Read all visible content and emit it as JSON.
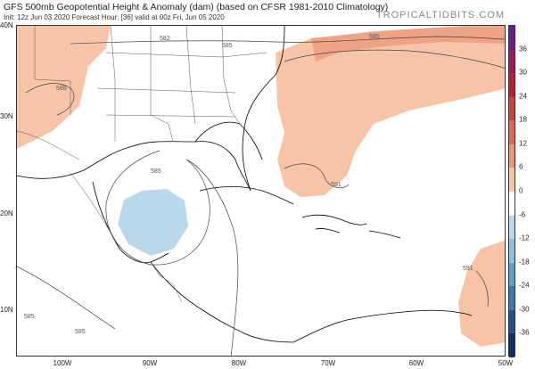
{
  "header": {
    "title": "GFS 500mb Geopotential Height & Anomaly (dam) (based on CFSR 1981-2010 Climatology)",
    "subtitle": "Init: 12z Jun 03 2020   Forecast Hour: [36]   valid at 00z Fri, Jun 05 2020",
    "brand": "TROPICALTIDBITS.COM"
  },
  "map": {
    "latitude_labels": [
      "40N",
      "30N",
      "20N",
      "10N"
    ],
    "longitude_labels": [
      "100W",
      "90W",
      "80W",
      "70W",
      "60W",
      "50W"
    ],
    "contour_labels": [
      "582",
      "585",
      "585",
      "588",
      "585",
      "591",
      "591",
      "585",
      "585"
    ]
  },
  "colorbar": {
    "labels": [
      "36",
      "30",
      "24",
      "18",
      "12",
      "6",
      "0",
      "-6",
      "-12",
      "-18",
      "-24",
      "-30",
      "-36"
    ],
    "colors": [
      "#6b1d8c",
      "#9b1b5a",
      "#b51f37",
      "#c9423d",
      "#dc6a55",
      "#ec9476",
      "#f8c4a8",
      "#ffffff",
      "#b9d8ec",
      "#8fbfe0",
      "#5f9ccf",
      "#3e76b4",
      "#254e93",
      "#142c6b"
    ]
  }
}
